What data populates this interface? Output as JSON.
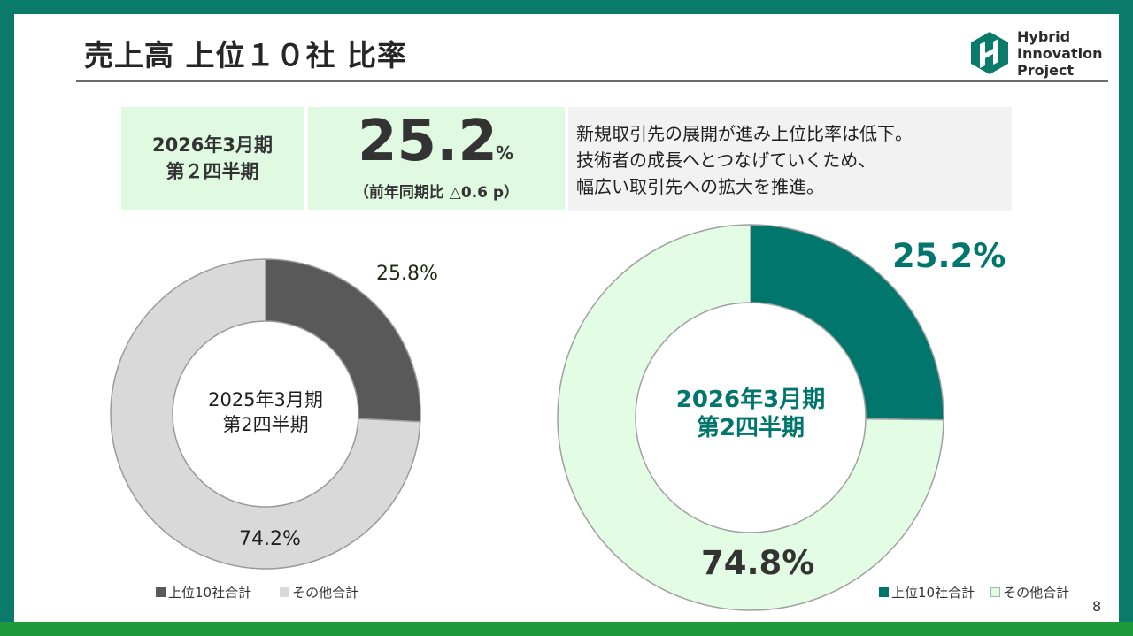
{
  "page": {
    "title": "売上高 上位１０社 比率",
    "page_number": "8",
    "colors": {
      "frame": "#0a7a6a",
      "frame_bottom": "#1e9a3a",
      "accent": "#00766c",
      "kpi_bg": "#e0fae2"
    }
  },
  "logo": {
    "icon": "hybrid-innovation-logo-icon",
    "line1": "Hybrid",
    "line2": "Innovation",
    "line3": "Project"
  },
  "kpi": {
    "period_line1": "2026年3月期",
    "period_line2": "第２四半期",
    "value": "25.2",
    "unit": "%",
    "note": "（前年同期比 △0.6 p）"
  },
  "comment": {
    "lines": [
      "新規取引先の展開が進み上位比率は低下。",
      "技術者の成長へとつなげていくため、",
      "幅広い取引先への拡大を推進。"
    ]
  },
  "chart_data": [
    {
      "type": "pie",
      "variant": "donut",
      "center_label": [
        "2025年3月期",
        "第2四半期"
      ],
      "categories": [
        "上位10社合計",
        "その他合計"
      ],
      "values": [
        25.8,
        74.2
      ],
      "data_labels": [
        "25.8%",
        "74.2%"
      ],
      "colors": [
        "#595959",
        "#d9d9d9"
      ],
      "legend": "bottom"
    },
    {
      "type": "pie",
      "variant": "donut",
      "center_label": [
        "2026年3月期",
        "第2四半期"
      ],
      "categories": [
        "上位10社合計",
        "その他合計"
      ],
      "values": [
        25.2,
        74.8
      ],
      "data_labels": [
        "25.2%",
        "74.8%"
      ],
      "colors": [
        "#00766c",
        "#e2fde3"
      ],
      "legend": "bottom-right"
    }
  ]
}
